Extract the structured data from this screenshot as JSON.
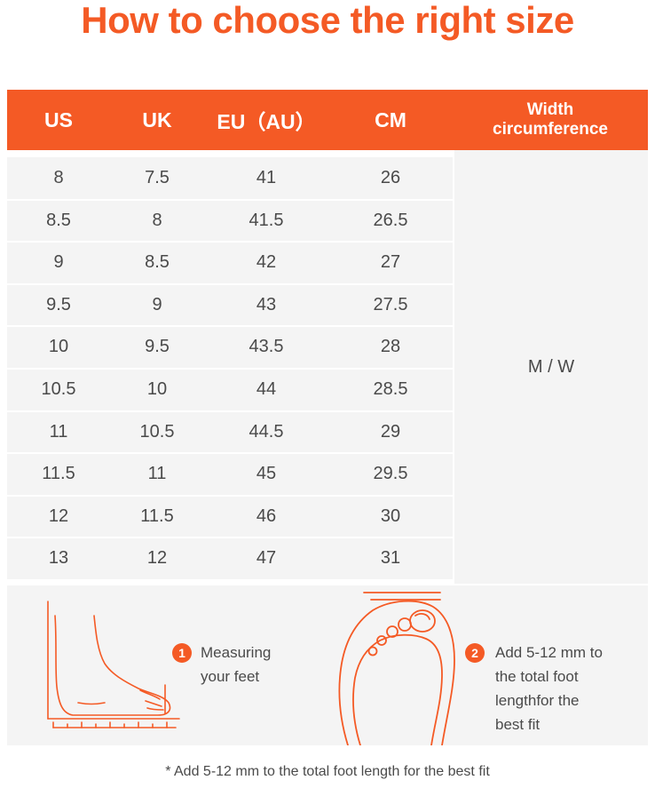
{
  "title": "How to choose the right size",
  "table": {
    "headers": [
      "US",
      "UK",
      "EU（AU）",
      "CM"
    ],
    "width_header_line1": "Width",
    "width_header_line2": "circumference",
    "rows": [
      [
        "8",
        "7.5",
        "41",
        "26"
      ],
      [
        "8.5",
        "8",
        "41.5",
        "26.5"
      ],
      [
        "9",
        "8.5",
        "42",
        "27"
      ],
      [
        "9.5",
        "9",
        "43",
        "27.5"
      ],
      [
        "10",
        "9.5",
        "43.5",
        "28"
      ],
      [
        "10.5",
        "10",
        "44",
        "28.5"
      ],
      [
        "11",
        "10.5",
        "44.5",
        "29"
      ],
      [
        "11.5",
        "11",
        "45",
        "29.5"
      ],
      [
        "12",
        "11.5",
        "46",
        "30"
      ],
      [
        "13",
        "12",
        "47",
        "31"
      ]
    ],
    "width_value": "M / W"
  },
  "guide": {
    "step1": {
      "num": "1",
      "line1": "Measuring",
      "line2": "your feet",
      "icon": "foot-side-icon"
    },
    "step2": {
      "num": "2",
      "line1": "Add 5-12 mm to",
      "line2": "the total foot",
      "line3": "lengthfor the",
      "line4": "best fit",
      "icon": "foot-top-icon"
    }
  },
  "footnote": "* Add 5-12 mm to the total foot length for the best fit",
  "colors": {
    "accent": "#f45a25",
    "row_bg": "#f4f4f4"
  }
}
